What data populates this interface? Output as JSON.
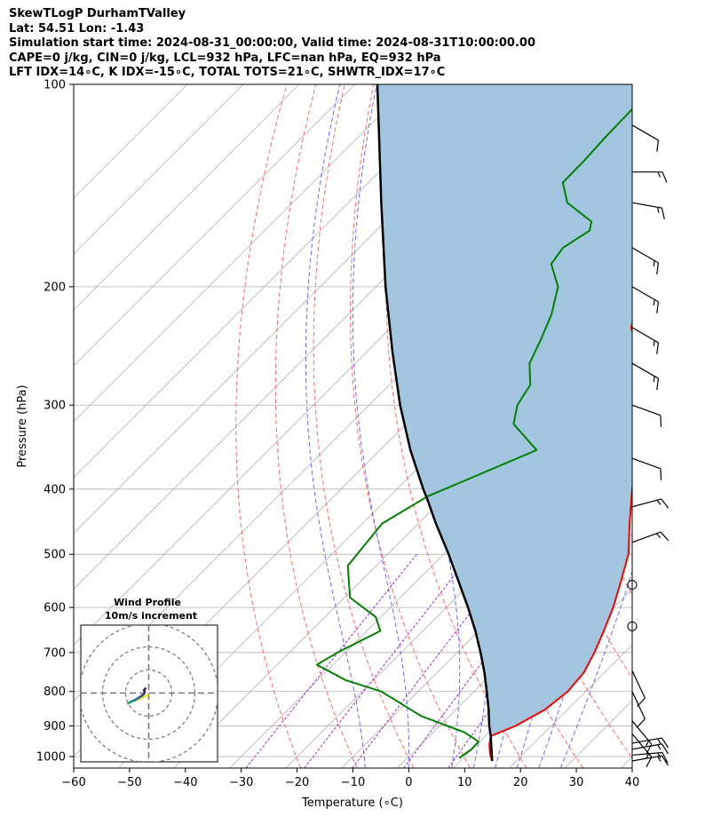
{
  "header": {
    "line1": "SkewTLogP DurhamTValley",
    "line2": "Lat: 54.51   Lon: -1.43",
    "line3": "Simulation start time: 2024-08-31_00:00:00, Valid time: 2024-08-31T10:00:00.00",
    "line4": "CAPE=0 j/kg, CIN=0 j/kg, LCL=932 hPa, LFC=nan hPa, EQ=932 hPa",
    "line5": "LFT IDX=14∘C, K IDX=-15∘C, TOTAL TOTS=21∘C, SHWTR_IDX=17∘C"
  },
  "chart_data": {
    "type": "skewt",
    "xlabel": "Temperature (∘C)",
    "ylabel": "Pressure (hPa)",
    "xlim": [
      -60,
      40
    ],
    "ylim": [
      1040,
      100
    ],
    "x_ticks": [
      "−60",
      "−50",
      "−40",
      "−30",
      "−20",
      "−10",
      "0",
      "10",
      "20",
      "30",
      "40"
    ],
    "x_tick_values": [
      -60,
      -50,
      -40,
      -30,
      -20,
      -10,
      0,
      10,
      20,
      30,
      40
    ],
    "y_ticks": [
      "1000",
      "900",
      "800",
      "700",
      "600",
      "500",
      "400",
      "300",
      "200",
      "100"
    ],
    "y_tick_values": [
      1000,
      900,
      800,
      700,
      600,
      500,
      400,
      300,
      200,
      100
    ],
    "temperature_profile": {
      "pressure": [
        1015,
        990,
        960,
        932,
        900,
        850,
        800,
        750,
        700,
        650,
        600,
        550,
        500,
        450,
        400,
        350,
        300,
        270,
        250,
        230,
        210,
        200,
        190,
        180,
        170,
        160,
        150,
        140,
        130,
        120,
        110,
        100
      ],
      "temp": [
        15.7,
        14.0,
        12.3,
        11.0,
        13.6,
        16.0,
        16.8,
        16.3,
        14.6,
        12.4,
        9.9,
        6.7,
        3.1,
        -2.2,
        -7.9,
        -14.0,
        -21.4,
        -26.5,
        -31.3,
        -37.0,
        -40.5,
        -41.0,
        -41.0,
        -41.0,
        -41.0,
        -41.0,
        -41.0,
        -40.5,
        -40.8,
        -42.3,
        -43.4,
        -44.8
      ]
    },
    "dewpoint_profile": {
      "pressure": [
        1005,
        975,
        950,
        920,
        870,
        800,
        770,
        730,
        700,
        650,
        620,
        580,
        520,
        450,
        410,
        350,
        320,
        300,
        280,
        260,
        240,
        220,
        200,
        185,
        175,
        165,
        160,
        150,
        140,
        130,
        120,
        110,
        100
      ],
      "dewp": [
        9.3,
        9.9,
        9.8,
        5.6,
        -5.1,
        -16.6,
        -24.9,
        -32.9,
        -31.4,
        -27.6,
        -30.9,
        -39.0,
        -45.1,
        -46.5,
        -43.2,
        -32.0,
        -40.8,
        -43.5,
        -44.8,
        -48.8,
        -51.0,
        -53.6,
        -57.4,
        -62.7,
        -63.5,
        -61.8,
        -63.1,
        -70.8,
        -75.2,
        -75.3,
        -75.7,
        -75.9,
        -76.2
      ]
    },
    "parcel_profile": {
      "pressure": [
        1015,
        932,
        900,
        850,
        800,
        750,
        700,
        650,
        600,
        550,
        500,
        450,
        414,
        400,
        350,
        300,
        250,
        200,
        150,
        100
      ],
      "temp": [
        15.7,
        11.0,
        8.9,
        5.8,
        2.3,
        -1.5,
        -5.8,
        -10.6,
        -16.1,
        -22.3,
        -29.1,
        -36.9,
        -42.8,
        -45.3,
        -54.6,
        -64.5,
        -75.4,
        -88.3,
        -104.1,
        -126.0
      ]
    },
    "cape_region": "shaded between temperature and parcel curves, 932 to 100 hPa",
    "dry_adiabats_theta_K": [
      253,
      263,
      273,
      283,
      293,
      303,
      313,
      323,
      333,
      343,
      353,
      363,
      373,
      383,
      393,
      403,
      413,
      423,
      433,
      443,
      453,
      463
    ],
    "moist_adiabats_C": [
      -8,
      0,
      8,
      12,
      16,
      20,
      24,
      28
    ],
    "mixing_ratio_lines": [
      0.4,
      1,
      2,
      4,
      7
    ],
    "wind_barbs": {
      "pressure": [
        1015,
        995,
        975,
        955,
        925,
        885,
        800,
        745,
        640,
        555,
        480,
        425,
        360,
        300,
        260,
        230,
        200,
        175,
        150,
        135,
        115
      ],
      "speed_kt": [
        15,
        15,
        15,
        15,
        15,
        15,
        10,
        10,
        0,
        0,
        15,
        15,
        10,
        10,
        15,
        15,
        15,
        15,
        15,
        15,
        10
      ],
      "direction_deg": [
        260,
        265,
        260,
        260,
        320,
        320,
        335,
        335,
        0,
        0,
        250,
        255,
        290,
        290,
        300,
        300,
        300,
        300,
        280,
        270,
        300
      ]
    },
    "wind_profile_inset": {
      "title": "Wind Profile",
      "subtitle": "10m/s increment",
      "rings_ms": [
        10,
        20,
        30
      ],
      "u": [
        -0.5,
        -2.5,
        -5.0,
        -7.3,
        -8.8,
        -9.0,
        -8.7,
        -8.3,
        -7.8,
        -7.0,
        -6.0,
        -5.0,
        -4.0,
        -3.0,
        -2.2,
        -1.8,
        -2.0,
        -1.5
      ],
      "v": [
        -1.0,
        -1.9,
        -2.8,
        -3.6,
        -4.2,
        -4.5,
        -4.4,
        -4.2,
        -3.9,
        -3.5,
        -3.0,
        -2.4,
        -1.8,
        -1.2,
        -0.5,
        0.5,
        1.2,
        1.9
      ]
    }
  }
}
